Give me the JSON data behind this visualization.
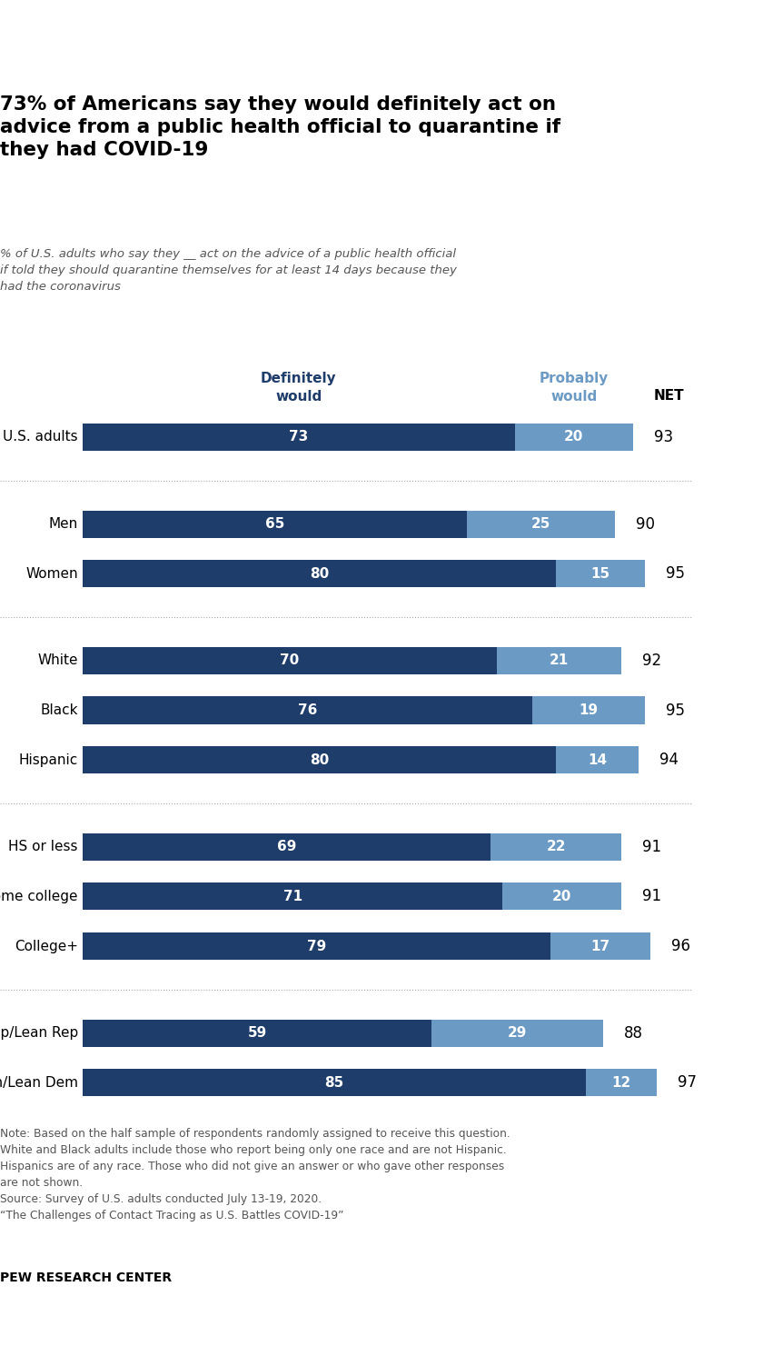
{
  "title": "73% of Americans say they would definitely act on\nadvice from a public health official to quarantine if\nthey had COVID-19",
  "subtitle": "% of U.S. adults who say they __ act on the advice of a public health official\nif told they should quarantine themselves for at least 14 days because they\nhad the coronavirus",
  "col1_label": "Definitely\nwould",
  "col2_label": "Probably\nwould",
  "net_label": "NET",
  "categories": [
    "U.S. adults",
    "Men",
    "Women",
    "White",
    "Black",
    "Hispanic",
    "HS or less",
    "Some college",
    "College+",
    "Rep/Lean Rep",
    "Dem/Lean Dem"
  ],
  "definitely": [
    73,
    65,
    80,
    70,
    76,
    80,
    69,
    71,
    79,
    59,
    85
  ],
  "probably": [
    20,
    25,
    15,
    21,
    19,
    14,
    22,
    20,
    17,
    29,
    12
  ],
  "net": [
    93,
    90,
    95,
    92,
    95,
    94,
    91,
    91,
    96,
    88,
    97
  ],
  "color_definitely": "#1f3d6b",
  "color_probably": "#6b9ac4",
  "color_col1_label": "#1f3d6b",
  "color_col2_label": "#6b9ac4",
  "note_text": "Note: Based on the half sample of respondents randomly assigned to receive this question.\nWhite and Black adults include those who report being only one race and are not Hispanic.\nHispanics are of any race. Those who did not give an answer or who gave other responses\nare not shown.\nSource: Survey of U.S. adults conducted July 13-19, 2020.\n“The Challenges of Contact Tracing as U.S. Battles COVID-19”",
  "footer_text": "PEW RESEARCH CENTER",
  "bar_height": 0.55
}
